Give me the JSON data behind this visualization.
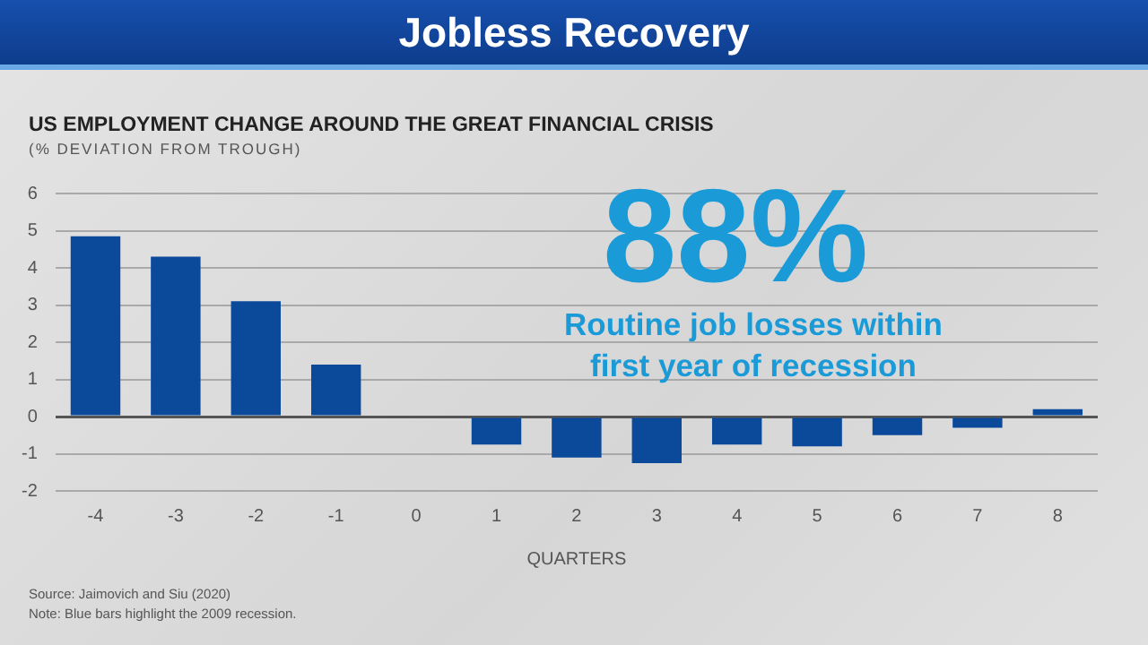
{
  "chart_data": {
    "type": "bar",
    "title": "Jobless Recovery",
    "subtitle": "US EMPLOYMENT CHANGE AROUND THE GREAT FINANCIAL CRISIS",
    "ylabel": "(% DEVIATION FROM TROUGH)",
    "xlabel": "QUARTERS",
    "categories": [
      "-4",
      "-3",
      "-2",
      "-1",
      "0",
      "1",
      "2",
      "3",
      "4",
      "5",
      "6",
      "7",
      "8"
    ],
    "values": [
      4.85,
      4.3,
      3.1,
      1.4,
      0,
      -0.75,
      -1.1,
      -1.25,
      -0.75,
      -0.8,
      -0.5,
      -0.3,
      0.2
    ],
    "color": "#0b4a9b",
    "ylim": [
      -2,
      6
    ],
    "yticks": [
      -2,
      -1,
      0,
      1,
      2,
      3,
      4,
      5,
      6
    ],
    "grid": "y",
    "annotations": [
      "88%",
      "Routine job losses within first year of recession",
      "Source: Jaimovich and Siu (2020)",
      "Note: Blue bars highlight the 2009 recession."
    ]
  }
}
